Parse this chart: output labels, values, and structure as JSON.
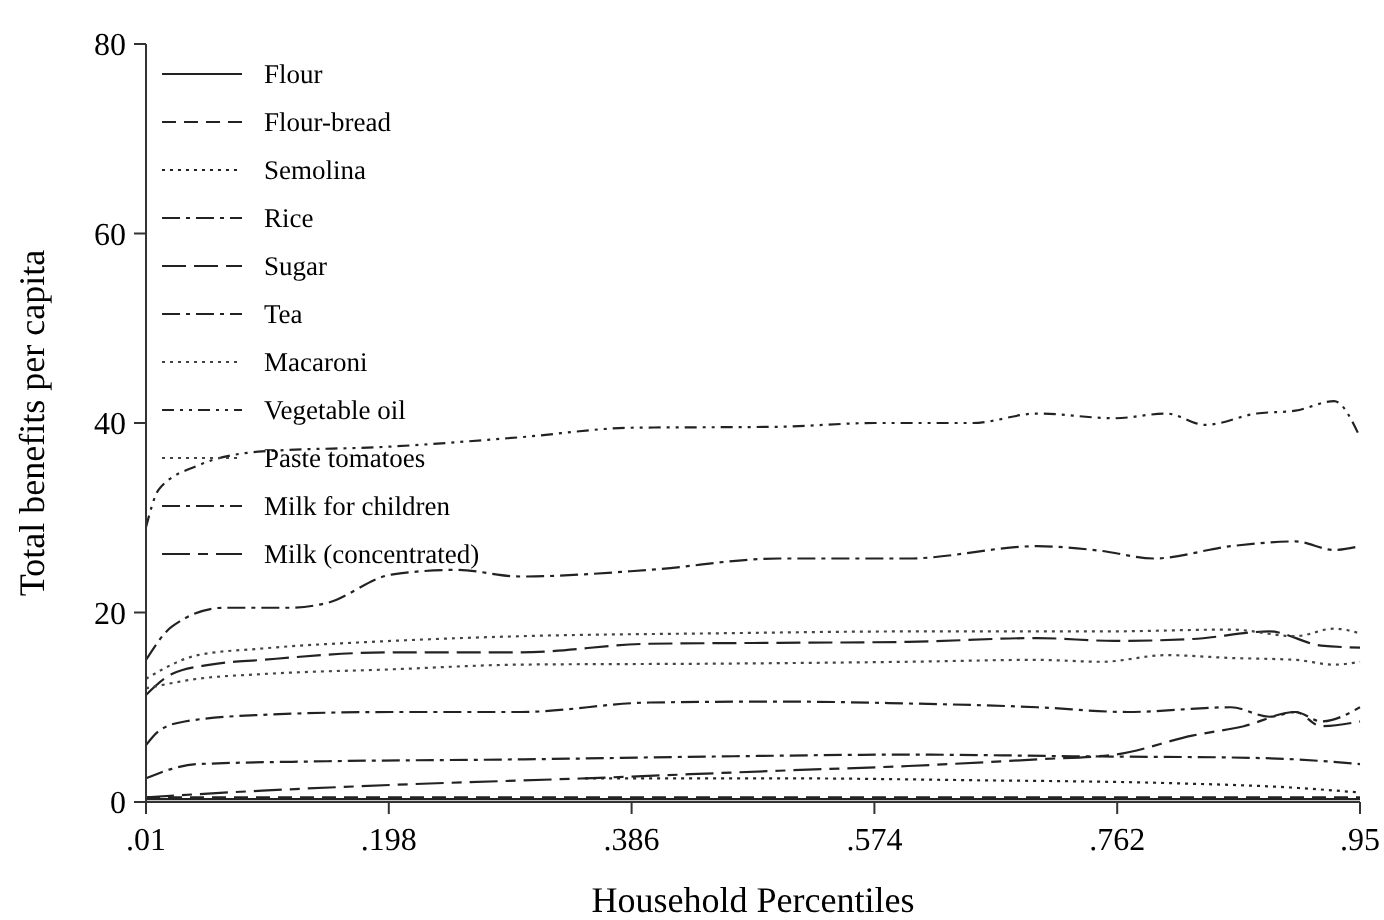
{
  "chart_data": {
    "type": "line",
    "xlabel": "Household Percentiles",
    "ylabel": "Total benefits per capita",
    "xlim": [
      0.01,
      0.95
    ],
    "ylim": [
      0,
      80
    ],
    "xticks": [
      {
        "value": 0.01,
        "label": ".01"
      },
      {
        "value": 0.198,
        "label": ".198"
      },
      {
        "value": 0.386,
        "label": ".386"
      },
      {
        "value": 0.574,
        "label": ".574"
      },
      {
        "value": 0.762,
        "label": ".762"
      },
      {
        "value": 0.95,
        "label": ".95"
      }
    ],
    "yticks": [
      0,
      20,
      40,
      60,
      80
    ],
    "grid": false,
    "legend": "top left",
    "series": [
      {
        "name": "Flour",
        "color": "#222222",
        "line_style": "solid",
        "x": [
          0.01,
          0.2,
          0.4,
          0.6,
          0.8,
          0.95
        ],
        "values": [
          0.3,
          0.3,
          0.3,
          0.3,
          0.3,
          0.3
        ]
      },
      {
        "name": "Flour-bread",
        "color": "#222222",
        "line_style": "dashed",
        "x": [
          0.01,
          0.2,
          0.4,
          0.6,
          0.8,
          0.95
        ],
        "values": [
          0.5,
          0.5,
          0.5,
          0.5,
          0.5,
          0.5
        ]
      },
      {
        "name": "Semolina",
        "color": "#222222",
        "line_style": "dotted",
        "x": [
          0.35,
          0.5,
          0.65,
          0.8,
          0.9,
          0.95
        ],
        "values": [
          2.5,
          2.5,
          2.3,
          2,
          1.5,
          1
        ]
      },
      {
        "name": "Rice",
        "color": "#222222",
        "line_style": "dashdot",
        "x": [
          0.01,
          0.02,
          0.04,
          0.1,
          0.2,
          0.3,
          0.4,
          0.5,
          0.6,
          0.7,
          0.77,
          0.85,
          0.88,
          0.9,
          0.92,
          0.95
        ],
        "values": [
          6,
          7.5,
          8.5,
          9.2,
          9.5,
          9.5,
          10.5,
          10.6,
          10.4,
          10,
          9.5,
          10,
          9,
          9.5,
          8.5,
          10
        ]
      },
      {
        "name": "Sugar",
        "color": "#222222",
        "line_style": "longdash",
        "x": [
          0.01,
          0.03,
          0.06,
          0.1,
          0.2,
          0.3,
          0.4,
          0.5,
          0.6,
          0.7,
          0.76,
          0.82,
          0.88,
          0.92,
          0.95
        ],
        "values": [
          11.3,
          13.5,
          14.5,
          15,
          15.8,
          15.8,
          16.7,
          16.8,
          16.9,
          17.3,
          17,
          17.2,
          18,
          16.5,
          16.3
        ]
      },
      {
        "name": "Tea",
        "color": "#222222",
        "line_style": "dashdot",
        "x": [
          0.01,
          0.03,
          0.05,
          0.15,
          0.3,
          0.45,
          0.6,
          0.75,
          0.85,
          0.9,
          0.95
        ],
        "values": [
          2.5,
          3.5,
          4,
          4.3,
          4.5,
          4.8,
          5,
          4.8,
          4.7,
          4.5,
          4
        ]
      },
      {
        "name": "Macaroni",
        "color": "#444444",
        "line_style": "dotted",
        "x": [
          0.01,
          0.05,
          0.1,
          0.2,
          0.3,
          0.45,
          0.6,
          0.7,
          0.75,
          0.8,
          0.85,
          0.9,
          0.93,
          0.95
        ],
        "values": [
          12,
          13,
          13.5,
          14,
          14.5,
          14.6,
          14.8,
          15,
          14.8,
          15.5,
          15.2,
          15,
          14.5,
          14.8
        ]
      },
      {
        "name": "Vegetable oil",
        "color": "#222222",
        "line_style": "dashdotdot",
        "x": [
          0.01,
          0.02,
          0.05,
          0.1,
          0.198,
          0.3,
          0.386,
          0.5,
          0.574,
          0.65,
          0.7,
          0.76,
          0.8,
          0.83,
          0.87,
          0.9,
          0.93,
          0.95
        ],
        "values": [
          29,
          33,
          35.5,
          37,
          37.5,
          38.5,
          39.5,
          39.6,
          40,
          40,
          41,
          40.5,
          41,
          39.8,
          41,
          41.3,
          42.3,
          38.5
        ]
      },
      {
        "name": "Paste tomatoes",
        "color": "#444444",
        "line_style": "dotted",
        "x": [
          0.01,
          0.05,
          0.1,
          0.2,
          0.3,
          0.45,
          0.6,
          0.75,
          0.85,
          0.9,
          0.93,
          0.95
        ],
        "values": [
          13,
          15.5,
          16.2,
          17,
          17.5,
          17.8,
          18,
          18,
          18.2,
          17.5,
          18.3,
          17.8
        ]
      },
      {
        "name": "Milk for children",
        "color": "#222222",
        "line_style": "dashdot",
        "x": [
          0.01,
          0.03,
          0.07,
          0.12,
          0.15,
          0.2,
          0.25,
          0.3,
          0.4,
          0.5,
          0.6,
          0.7,
          0.75,
          0.79,
          0.85,
          0.9,
          0.93,
          0.95
        ],
        "values": [
          15,
          18.5,
          20.5,
          20.5,
          21,
          24,
          24.5,
          23.8,
          24.5,
          25.7,
          25.7,
          27,
          26.5,
          25.7,
          27,
          27.5,
          26.6,
          27
        ]
      },
      {
        "name": "Milk (concentrated)",
        "color": "#222222",
        "line_style": "longdashdot",
        "x": [
          0.01,
          0.1,
          0.2,
          0.35,
          0.5,
          0.6,
          0.7,
          0.76,
          0.82,
          0.86,
          0.9,
          0.92,
          0.95
        ],
        "values": [
          0.5,
          1.2,
          1.8,
          2.5,
          3.3,
          3.8,
          4.5,
          5,
          7,
          8,
          9.5,
          8,
          8.5
        ]
      }
    ]
  }
}
